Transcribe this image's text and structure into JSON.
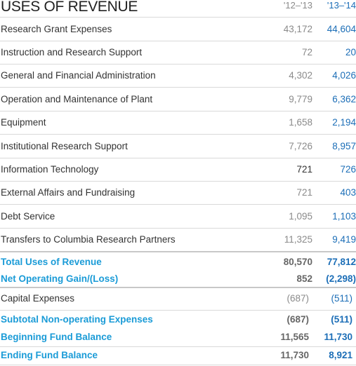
{
  "title": "USES OF REVENUE",
  "columns": [
    "'12–'13",
    "'13–'14"
  ],
  "items": [
    {
      "label": "Research Grant Expenses",
      "v1": "43,172",
      "v2": "44,604"
    },
    {
      "label": "Instruction and Research Support",
      "v1": "72",
      "v2": "20"
    },
    {
      "label": "General and Financial Administration",
      "v1": "4,302",
      "v2": "4,026"
    },
    {
      "label": "Operation and Maintenance of Plant",
      "v1": "9,779",
      "v2": "6,362"
    },
    {
      "label": "Equipment",
      "v1": "1,658",
      "v2": "2,194"
    },
    {
      "label": "Institutional Research Support",
      "v1": "7,726",
      "v2": "8,957"
    },
    {
      "label": "Information Technology",
      "v1": "721",
      "v2": "726"
    },
    {
      "label": "External Affairs and Fundraising",
      "v1": "721",
      "v2": "403"
    },
    {
      "label": "Debt Service",
      "v1": "1,095",
      "v2": "1,103"
    },
    {
      "label": "Transfers to Columbia Research Partners",
      "v1": "11,325",
      "v2": "9,419"
    }
  ],
  "total_uses": {
    "label": "Total Uses of Revenue",
    "v1": "80,570",
    "v2": "77,812"
  },
  "net_gain": {
    "label": "Net Operating Gain/(Loss)",
    "v1": "852",
    "v2": "(2,298)"
  },
  "capital": {
    "label": "Capital Expenses",
    "v1": "(687)",
    "v2": "(511)"
  },
  "subtotal": {
    "label": "Subtotal Non-operating Expenses",
    "v1": "(687)",
    "v2": "(511)"
  },
  "beginning": {
    "label": "Beginning Fund Balance",
    "v1": "11,565",
    "v2": "11,730"
  },
  "ending": {
    "label": "Ending Fund Balance",
    "v1": "11,730",
    "v2": "8,921"
  }
}
